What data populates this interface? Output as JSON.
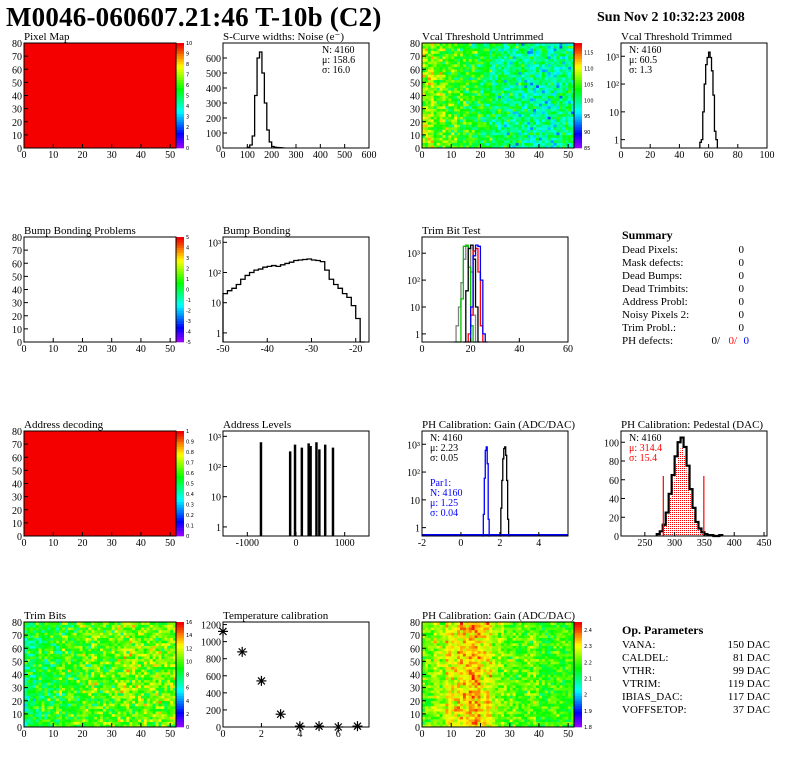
{
  "header": {
    "title": "M0046-060607.21:46 T-10b (C2)",
    "date": "Sun Nov  2 10:32:23 2008"
  },
  "summary": {
    "title": "Summary",
    "rows": [
      {
        "label": "Dead Pixels:",
        "value": "0"
      },
      {
        "label": "Mask defects:",
        "value": "0"
      },
      {
        "label": "Dead Bumps:",
        "value": "0"
      },
      {
        "label": "Dead Trimbits:",
        "value": "0"
      },
      {
        "label": "Address Probl:",
        "value": "0"
      },
      {
        "label": "Noisy Pixels 2:",
        "value": "0"
      },
      {
        "label": "Trim Probl.:",
        "value": "0"
      }
    ],
    "ph_defects": {
      "label": "PH defects:",
      "v1": "0/",
      "v2": "0/",
      "v3": "0",
      "c1": "#000000",
      "c2": "#ff0000",
      "c3": "#0000ff"
    }
  },
  "op_parameters": {
    "title": "Op. Parameters",
    "rows": [
      {
        "label": "VANA:",
        "value": "150 DAC"
      },
      {
        "label": "CALDEL:",
        "value": "81 DAC"
      },
      {
        "label": "VTHR:",
        "value": "99 DAC"
      },
      {
        "label": "VTRIM:",
        "value": "119 DAC"
      },
      {
        "label": "IBIAS_DAC:",
        "value": "117 DAC"
      },
      {
        "label": "VOFFSETOP:",
        "value": "37 DAC"
      }
    ]
  },
  "chart_data": [
    {
      "type": "heatmap",
      "title": "Pixel Map",
      "xlim": [
        0,
        52
      ],
      "ylim": [
        0,
        80
      ],
      "xticks": [
        0,
        10,
        20,
        30,
        40,
        50
      ],
      "yticks": [
        0,
        10,
        20,
        30,
        40,
        50,
        60,
        70,
        80
      ],
      "zlim": [
        0,
        10
      ],
      "zticks": [
        0,
        1,
        2,
        3,
        4,
        5,
        6,
        7,
        8,
        9,
        10
      ],
      "uniform_z": 10
    },
    {
      "type": "histogram",
      "title": "S-Curve widths: Noise (e⁻)",
      "xlim": [
        0,
        600
      ],
      "ylim": [
        0,
        700
      ],
      "log": false,
      "xticks": [
        0,
        100,
        200,
        300,
        400,
        500,
        600
      ],
      "yticks": [
        0,
        100,
        200,
        300,
        400,
        500,
        600
      ],
      "series": [
        {
          "color": "#000000",
          "x0": 100,
          "w": 10,
          "counts": [
            5,
            20,
            80,
            350,
            600,
            640,
            500,
            300,
            120,
            40,
            10,
            5,
            3,
            2,
            1
          ]
        }
      ],
      "stats": [
        {
          "text": "N: 4160",
          "color": "#000000"
        },
        {
          "text": "μ: 158.6",
          "color": "#000000"
        },
        {
          "text": "σ: 16.0",
          "color": "#000000"
        }
      ],
      "stats_pos": "top-right"
    },
    {
      "type": "heatmap",
      "title": "Vcal Threshold Untrimmed",
      "xlim": [
        0,
        52
      ],
      "ylim": [
        0,
        80
      ],
      "xticks": [
        0,
        10,
        20,
        30,
        40,
        50
      ],
      "yticks": [
        0,
        10,
        20,
        30,
        40,
        50,
        60,
        70,
        80
      ],
      "zlim": [
        85,
        118
      ],
      "zticks": [
        85,
        90,
        95,
        100,
        105,
        110,
        115
      ],
      "column_profile": [
        108,
        106,
        105,
        104,
        103,
        102,
        101,
        100,
        100,
        99,
        99,
        99,
        100
      ],
      "spread": 4
    },
    {
      "type": "histogram",
      "title": "Vcal Threshold Trimmed",
      "xlim": [
        0,
        100
      ],
      "ylim": [
        0.5,
        3000
      ],
      "log": true,
      "xticks": [
        0,
        20,
        40,
        60,
        80,
        100
      ],
      "yticks": [
        1,
        10,
        100,
        1000
      ],
      "yticklabels": [
        "1",
        "10",
        "10²",
        "10³"
      ],
      "series": [
        {
          "color": "#000000",
          "x0": 54,
          "w": 1,
          "counts": [
            0.8,
            1,
            10,
            100,
            500,
            900,
            1400,
            900,
            300,
            40,
            2,
            1
          ]
        }
      ],
      "stats": [
        {
          "text": "N: 4160",
          "color": "#000000"
        },
        {
          "text": "μ: 60.5",
          "color": "#000000"
        },
        {
          "text": "σ:  1.3",
          "color": "#000000"
        }
      ],
      "stats_pos": "top-left"
    },
    {
      "type": "heatmap",
      "title": "Bump Bonding Problems",
      "xlim": [
        0,
        52
      ],
      "ylim": [
        0,
        80
      ],
      "xticks": [
        0,
        10,
        20,
        30,
        40,
        50
      ],
      "yticks": [
        0,
        10,
        20,
        30,
        40,
        50,
        60,
        70,
        80
      ],
      "zlim": [
        -5,
        5
      ],
      "zticks": [
        -5,
        -4,
        -3,
        -2,
        -1,
        0,
        1,
        2,
        3,
        4,
        5
      ],
      "uniform_z": null
    },
    {
      "type": "histogram",
      "title": "Bump Bonding",
      "xlim": [
        -50,
        -17
      ],
      "ylim": [
        0.5,
        1500
      ],
      "log": true,
      "xticks": [
        -50,
        -40,
        -30,
        -20
      ],
      "yticks": [
        1,
        10,
        100,
        1000
      ],
      "yticklabels": [
        "1",
        "10",
        "10²",
        "10³"
      ],
      "series": [
        {
          "color": "#000000",
          "x0": -50,
          "w": 1,
          "counts": [
            20,
            25,
            30,
            40,
            60,
            80,
            100,
            120,
            130,
            150,
            160,
            170,
            160,
            180,
            200,
            220,
            250,
            260,
            270,
            280,
            260,
            250,
            230,
            120,
            60,
            40,
            30,
            20,
            15,
            8,
            3,
            0.5
          ]
        }
      ]
    },
    {
      "type": "histogram",
      "title": "Trim Bit Test",
      "xlim": [
        0,
        60
      ],
      "ylim": [
        0.5,
        4000
      ],
      "log": true,
      "xticks": [
        0,
        20,
        40,
        60
      ],
      "yticks": [
        1,
        10,
        100,
        1000
      ],
      "yticklabels": [
        "1",
        "10",
        "10²",
        "10³"
      ],
      "series": [
        {
          "color": "#808080",
          "x0": 13,
          "w": 1,
          "counts": [
            0.5,
            2,
            10,
            80,
            600,
            1800,
            1500,
            200,
            5,
            0.5
          ]
        },
        {
          "color": "#00c000",
          "x0": 14,
          "w": 1,
          "counts": [
            0.5,
            0.5,
            20,
            1800,
            2000,
            300,
            2,
            0.5
          ]
        },
        {
          "color": "#000000",
          "x0": 17,
          "w": 1,
          "counts": [
            0.5,
            40,
            1500,
            2000,
            600,
            10,
            0.5
          ]
        },
        {
          "color": "#ff0000",
          "x0": 18,
          "w": 1,
          "counts": [
            0.5,
            1,
            5,
            1200,
            1500,
            200,
            2,
            0.5
          ]
        },
        {
          "color": "#0000ff",
          "x0": 19,
          "w": 1,
          "counts": [
            0.5,
            10,
            800,
            2000,
            1800,
            100,
            1,
            0.5
          ]
        }
      ]
    },
    {
      "type": "heatmap",
      "title": "Address decoding",
      "xlim": [
        0,
        52
      ],
      "ylim": [
        0,
        80
      ],
      "xticks": [
        0,
        10,
        20,
        30,
        40,
        50
      ],
      "yticks": [
        0,
        10,
        20,
        30,
        40,
        50,
        60,
        70,
        80
      ],
      "zlim": [
        0,
        1
      ],
      "zticks": [
        0,
        0.1,
        0.2,
        0.3,
        0.4,
        0.5,
        0.6,
        0.7,
        0.8,
        0.9,
        1
      ],
      "uniform_z": 1
    },
    {
      "type": "histogram",
      "title": "Address Levels",
      "xlim": [
        -1500,
        1500
      ],
      "ylim": [
        0.5,
        1500
      ],
      "log": true,
      "xticks": [
        -1000,
        0,
        1000
      ],
      "yticks": [
        1,
        10,
        100,
        1000
      ],
      "yticklabels": [
        "1",
        "10",
        "10²",
        "10³"
      ],
      "spikes": {
        "color": "#000000",
        "width": 20,
        "x": [
          -720,
          -120,
          -20,
          120,
          260,
          300,
          420,
          480,
          600,
          760
        ],
        "y": [
          600,
          300,
          500,
          400,
          550,
          450,
          600,
          350,
          500,
          400
        ]
      }
    },
    {
      "type": "histogram",
      "title": "PH Calibration: Gain (ADC/DAC)",
      "xlim": [
        -2,
        5.5
      ],
      "ylim": [
        0.5,
        3000
      ],
      "log": true,
      "xticks": [
        -2,
        0,
        2,
        4
      ],
      "yticks": [
        1,
        10,
        100,
        1000
      ],
      "yticklabels": [
        "1",
        "10",
        "10²",
        "10³"
      ],
      "series": [
        {
          "color": "#000000",
          "x0": 2.0,
          "w": 0.05,
          "counts": [
            0.5,
            5,
            50,
            300,
            700,
            800,
            400,
            50,
            2,
            0.5
          ]
        },
        {
          "color": "#0000ff",
          "x0": 1.1,
          "w": 0.05,
          "counts": [
            0.5,
            3,
            60,
            600,
            800,
            200,
            2,
            0.5
          ]
        }
      ],
      "baseline_color": "#0000ff",
      "stats": [
        {
          "text": "N: 4160",
          "color": "#000000"
        },
        {
          "text": "μ: 2.23",
          "color": "#000000"
        },
        {
          "text": "σ: 0.05",
          "color": "#000000"
        }
      ],
      "stats2": [
        {
          "text": "Par1:",
          "color": "#0000ff"
        },
        {
          "text": "N: 4160",
          "color": "#0000ff"
        },
        {
          "text": "μ: 1.25",
          "color": "#0000ff"
        },
        {
          "text": "σ: 0.04",
          "color": "#0000ff"
        }
      ],
      "stats_pos": "top-left"
    },
    {
      "type": "histogram",
      "title": "PH Calibration: Pedestal (DAC)",
      "xlim": [
        210,
        455
      ],
      "ylim": [
        0,
        112
      ],
      "log": false,
      "xticks": [
        250,
        300,
        350,
        400,
        450
      ],
      "yticks": [
        0,
        20,
        40,
        60,
        80,
        100
      ],
      "series": [
        {
          "color": "#000000",
          "x0": 270,
          "w": 5,
          "counts": [
            2,
            5,
            12,
            25,
            45,
            65,
            85,
            100,
            105,
            95,
            75,
            50,
            30,
            15,
            8,
            4,
            2,
            1,
            1,
            0,
            0,
            1
          ],
          "fill_range": [
            280,
            350
          ],
          "fill_color": "#ff0000"
        }
      ],
      "markers": {
        "color": "#ff0000",
        "x": [
          281,
          349
        ],
        "y": 64
      },
      "stats": [
        {
          "text": "N: 4160",
          "color": "#000000"
        },
        {
          "text": "μ: 314.4",
          "color": "#ff0000"
        },
        {
          "text": "σ: 15.4",
          "color": "#ff0000"
        }
      ],
      "stats_pos": "top-left"
    },
    {
      "type": "heatmap",
      "title": "Trim Bits",
      "xlim": [
        0,
        52
      ],
      "ylim": [
        0,
        80
      ],
      "xticks": [
        0,
        10,
        20,
        30,
        40,
        50
      ],
      "yticks": [
        0,
        10,
        20,
        30,
        40,
        50,
        60,
        70,
        80
      ],
      "zlim": [
        0,
        16
      ],
      "zticks": [
        0,
        2,
        4,
        6,
        8,
        10,
        12,
        14,
        16
      ],
      "column_profile": [
        8,
        8.5,
        9,
        9.5,
        9.5,
        10,
        10,
        10,
        10.5,
        10.5,
        10.5,
        10.5,
        10.5
      ],
      "spread": 2
    },
    {
      "type": "scatter",
      "title": "Temperature calibration",
      "xlim": [
        0,
        7.6
      ],
      "ylim": [
        0,
        1230
      ],
      "xticks": [
        0,
        2,
        4,
        6
      ],
      "yticks": [
        0,
        200,
        400,
        600,
        800,
        1000,
        1200
      ],
      "x": [
        0,
        1,
        2,
        3,
        4,
        5,
        6,
        7
      ],
      "y": [
        1120,
        880,
        540,
        150,
        10,
        10,
        0,
        10
      ]
    },
    {
      "type": "heatmap",
      "title": "PH Calibration: Gain (ADC/DAC)",
      "xlim": [
        0,
        52
      ],
      "ylim": [
        0,
        80
      ],
      "xticks": [
        0,
        10,
        20,
        30,
        40,
        50
      ],
      "yticks": [
        0,
        10,
        20,
        30,
        40,
        50,
        60,
        70,
        80
      ],
      "zlim": [
        1.8,
        2.45
      ],
      "zticks": [
        1.8,
        1.9,
        2,
        2.1,
        2.2,
        2.3,
        2.4
      ],
      "column_profile": [
        2.22,
        2.25,
        2.3,
        2.32,
        2.35,
        2.3,
        2.25,
        2.22,
        2.2,
        2.22,
        2.18,
        2.2,
        2.18
      ],
      "spread": 0.06
    }
  ]
}
